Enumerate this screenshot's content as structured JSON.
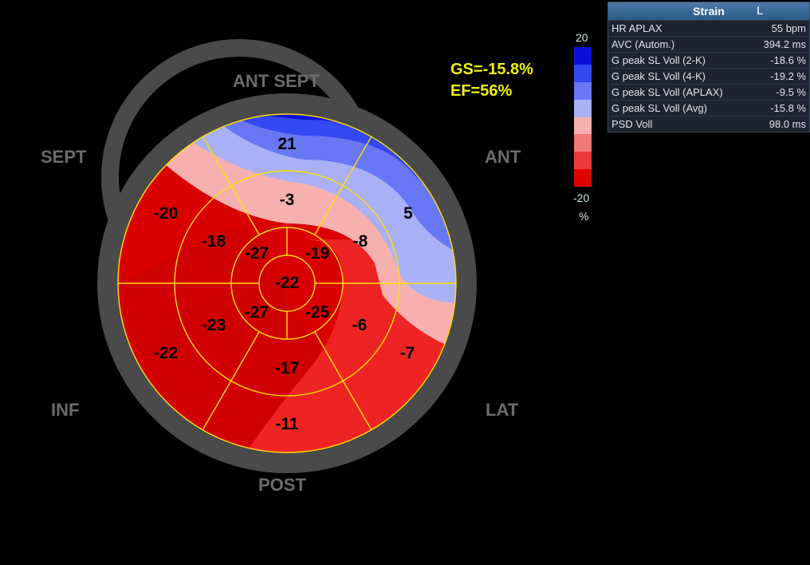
{
  "bullseye": {
    "wall_labels": {
      "ant_sept": "ANT  SEPT",
      "ant": "ANT",
      "sept": "SEPT",
      "inf": "INF",
      "lat": "LAT",
      "post": "POST"
    },
    "segments": {
      "basal_ant": "21",
      "basal_antlat": "5",
      "basal_lat": "-7",
      "basal_post": "-11",
      "basal_inf": "-22",
      "basal_sept": "-20",
      "mid_ant": "-3",
      "mid_antlat": "-8",
      "mid_lat": "-6",
      "mid_post": "-17",
      "mid_inf": "-23",
      "mid_sept": "-18",
      "apical_ul": "-27",
      "apical_ur": "-19",
      "apical_lr": "-25",
      "apical_ll": "-27",
      "apex": "-22"
    },
    "colors": {
      "ring": "#4a4a4a",
      "grid": "#ffe000",
      "label": "#000000"
    }
  },
  "summary": {
    "gs": "GS=-15.8%",
    "ef": "EF=56%"
  },
  "scale": {
    "max": "20",
    "min": "-20",
    "unit": "%",
    "colors": [
      "#0a10d8",
      "#3348f0",
      "#6878f4",
      "#aab0f6",
      "#f6b0b0",
      "#f27878",
      "#ee3a3a",
      "#dd0000"
    ]
  },
  "panel": {
    "title": "Strain",
    "title_mark": "L",
    "rows": [
      {
        "label": "HR APLAX",
        "value": "55 bpm"
      },
      {
        "label": "AVC (Autom.)",
        "value": "394.2 ms"
      },
      {
        "label": "G peak SL Voll (2-K)",
        "value": "-18.6 %"
      },
      {
        "label": "G peak SL Voll (4-K)",
        "value": "-19.2 %"
      },
      {
        "label": "G peak SL Voll (APLAX)",
        "value": "-9.5 %"
      },
      {
        "label": "G peak SL Voll (Avg)",
        "value": "-15.8 %"
      },
      {
        "label": "PSD Voll",
        "value": "98.0 ms"
      }
    ]
  }
}
